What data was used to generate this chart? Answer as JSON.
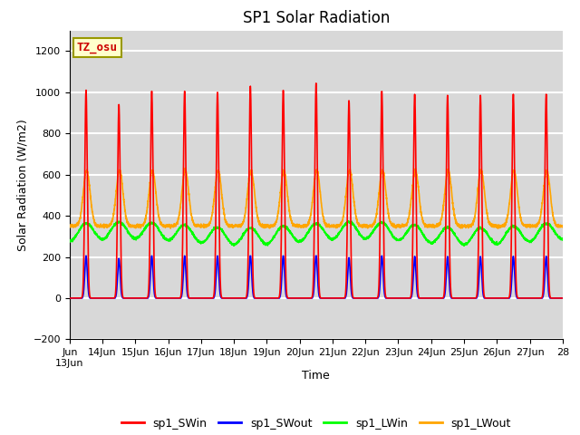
{
  "title": "SP1 Solar Radiation",
  "ylabel": "Solar Radiation (W/m2)",
  "xlabel": "Time",
  "ylim": [
    -200,
    1300
  ],
  "yticks": [
    -200,
    0,
    200,
    400,
    600,
    800,
    1000,
    1200
  ],
  "series": [
    "sp1_SWin",
    "sp1_SWout",
    "sp1_LWin",
    "sp1_LWout"
  ],
  "colors": [
    "red",
    "blue",
    "lime",
    "orange"
  ],
  "annotation_text": "TZ_osu",
  "annotation_color": "#cc0000",
  "annotation_bg": "#ffffcc",
  "annotation_border": "#999900",
  "background_color": "#d8d8d8",
  "grid_color": "white",
  "n_days": 15,
  "start_day": 13,
  "title_fontsize": 12,
  "label_fontsize": 9,
  "tick_fontsize": 8
}
